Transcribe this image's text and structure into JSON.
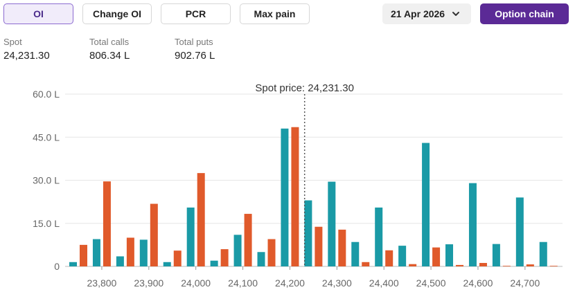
{
  "tabs": [
    {
      "label": "OI",
      "active": true
    },
    {
      "label": "Change OI",
      "active": false
    },
    {
      "label": "PCR",
      "active": false
    },
    {
      "label": "Max pain",
      "active": false
    }
  ],
  "expiry": {
    "selected": "21 Apr 2026",
    "icon": "chevron-down-icon"
  },
  "option_chain_label": "Option chain",
  "stats": {
    "spot": {
      "label": "Spot",
      "value": "24,231.30"
    },
    "total_calls": {
      "label": "Total calls",
      "value": "806.34 L"
    },
    "total_puts": {
      "label": "Total puts",
      "value": "902.76 L"
    }
  },
  "colors": {
    "calls": "#1a9aa6",
    "puts": "#e05a2b",
    "accent": "#5b2a96"
  },
  "chart_data": {
    "type": "bar",
    "annotation": "Spot price: 24,231.30",
    "spot_value": 24231.3,
    "y_tick_labels": [
      "0",
      "15.0 L",
      "30.0 L",
      "45.0 L",
      "60.0 L"
    ],
    "ylim": [
      0,
      60
    ],
    "grid": true,
    "x_tick_labels": [
      "23,800",
      "23,900",
      "24,000",
      "24,100",
      "24,200",
      "24,300",
      "24,400",
      "24,500",
      "24,600",
      "24,700"
    ],
    "categories": [
      23750,
      23800,
      23850,
      23900,
      23950,
      24000,
      24050,
      24100,
      24150,
      24200,
      24250,
      24300,
      24350,
      24400,
      24450,
      24500,
      24550,
      24600,
      24650,
      24700,
      24750
    ],
    "series": [
      {
        "key": "calls",
        "values": [
          1.5,
          9.5,
          3.5,
          9.3,
          1.5,
          20.5,
          2.0,
          11.0,
          5.0,
          48.0,
          23.0,
          29.5,
          8.5,
          20.5,
          7.2,
          43.0,
          7.7,
          29.0,
          7.8,
          24.0,
          8.5
        ]
      },
      {
        "key": "puts",
        "values": [
          7.5,
          29.6,
          10.0,
          21.8,
          5.5,
          32.5,
          6.0,
          18.3,
          9.5,
          48.5,
          13.8,
          12.8,
          1.5,
          5.6,
          0.8,
          6.6,
          0.5,
          1.2,
          0.2,
          0.7,
          0.2
        ]
      }
    ]
  }
}
